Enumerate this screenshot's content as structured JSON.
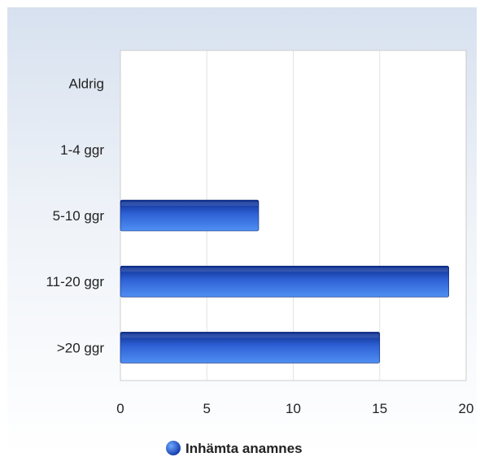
{
  "chart_data": {
    "type": "bar",
    "orientation": "horizontal",
    "categories": [
      "Aldrig",
      "1-4 ggr",
      "5-10 ggr",
      "11-20 ggr",
      ">20 ggr"
    ],
    "series": [
      {
        "name": "Inhämta anamnes",
        "values": [
          0,
          0,
          8,
          19,
          15
        ],
        "color": "#1f4fbf"
      }
    ],
    "xlim": [
      0,
      20
    ],
    "xticks": [
      0,
      5,
      10,
      15,
      20
    ],
    "tick_labels": [
      "0",
      "5",
      "10",
      "15",
      "20"
    ],
    "grid": true,
    "legend_position": "bottom"
  }
}
